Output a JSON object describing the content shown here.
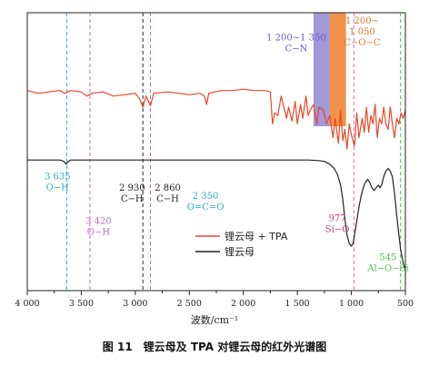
{
  "chart_data": {
    "type": "line",
    "title": "",
    "caption": "图 11　锂云母及 TPA 对锂云母的红外光谱图",
    "xlabel": "波数/cm⁻¹",
    "ylabel": "",
    "xlim": [
      4000,
      500
    ],
    "x_reversed": true,
    "x_ticks": [
      4000,
      3500,
      3000,
      2500,
      2000,
      1500,
      1000,
      500
    ],
    "x_tick_labels": [
      "4 000",
      "3 500",
      "3 000",
      "2 500",
      "2 000",
      "1 500",
      "1 000",
      "500"
    ],
    "y_ticks_shown": false,
    "legend_position": "lower-right inside plot",
    "series": [
      {
        "name": "锂云母 + TPA",
        "color": "#e8472a",
        "points": [
          [
            4000,
            0.72
          ],
          [
            3900,
            0.71
          ],
          [
            3800,
            0.715
          ],
          [
            3700,
            0.72
          ],
          [
            3650,
            0.71
          ],
          [
            3600,
            0.72
          ],
          [
            3500,
            0.715
          ],
          [
            3450,
            0.7
          ],
          [
            3400,
            0.71
          ],
          [
            3300,
            0.715
          ],
          [
            3200,
            0.7
          ],
          [
            3100,
            0.705
          ],
          [
            3000,
            0.71
          ],
          [
            2960,
            0.69
          ],
          [
            2930,
            0.66
          ],
          [
            2900,
            0.7
          ],
          [
            2860,
            0.665
          ],
          [
            2830,
            0.71
          ],
          [
            2700,
            0.715
          ],
          [
            2600,
            0.71
          ],
          [
            2500,
            0.705
          ],
          [
            2400,
            0.71
          ],
          [
            2360,
            0.7
          ],
          [
            2340,
            0.67
          ],
          [
            2320,
            0.71
          ],
          [
            2200,
            0.72
          ],
          [
            2100,
            0.72
          ],
          [
            2000,
            0.725
          ],
          [
            1900,
            0.72
          ],
          [
            1800,
            0.72
          ],
          [
            1750,
            0.715
          ],
          [
            1730,
            0.6
          ],
          [
            1710,
            0.64
          ],
          [
            1680,
            0.63
          ],
          [
            1650,
            0.7
          ],
          [
            1600,
            0.62
          ],
          [
            1580,
            0.66
          ],
          [
            1550,
            0.61
          ],
          [
            1520,
            0.68
          ],
          [
            1500,
            0.6
          ],
          [
            1470,
            0.67
          ],
          [
            1450,
            0.62
          ],
          [
            1420,
            0.7
          ],
          [
            1400,
            0.63
          ],
          [
            1380,
            0.65
          ],
          [
            1350,
            0.67
          ],
          [
            1320,
            0.6
          ],
          [
            1300,
            0.66
          ],
          [
            1260,
            0.65
          ],
          [
            1230,
            0.6
          ],
          [
            1200,
            0.63
          ],
          [
            1170,
            0.55
          ],
          [
            1150,
            0.62
          ],
          [
            1120,
            0.53
          ],
          [
            1100,
            0.65
          ],
          [
            1080,
            0.54
          ],
          [
            1060,
            0.58
          ],
          [
            1040,
            0.51
          ],
          [
            1020,
            0.6
          ],
          [
            1000,
            0.56
          ],
          [
            970,
            0.52
          ],
          [
            950,
            0.64
          ],
          [
            930,
            0.55
          ],
          [
            900,
            0.62
          ],
          [
            880,
            0.57
          ],
          [
            860,
            0.66
          ],
          [
            840,
            0.57
          ],
          [
            820,
            0.63
          ],
          [
            800,
            0.6
          ],
          [
            780,
            0.67
          ],
          [
            760,
            0.55
          ],
          [
            740,
            0.62
          ],
          [
            720,
            0.6
          ],
          [
            700,
            0.66
          ],
          [
            680,
            0.6
          ],
          [
            660,
            0.58
          ],
          [
            640,
            0.66
          ],
          [
            620,
            0.6
          ],
          [
            600,
            0.55
          ],
          [
            580,
            0.62
          ],
          [
            560,
            0.6
          ],
          [
            540,
            0.64
          ],
          [
            520,
            0.62
          ],
          [
            500,
            0.65
          ]
        ]
      },
      {
        "name": "锂云母",
        "color": "#222222",
        "points": [
          [
            4000,
            0.47
          ],
          [
            3800,
            0.47
          ],
          [
            3700,
            0.47
          ],
          [
            3660,
            0.465
          ],
          [
            3640,
            0.455
          ],
          [
            3620,
            0.465
          ],
          [
            3600,
            0.47
          ],
          [
            3400,
            0.47
          ],
          [
            3000,
            0.47
          ],
          [
            2500,
            0.47
          ],
          [
            2000,
            0.47
          ],
          [
            1500,
            0.47
          ],
          [
            1400,
            0.47
          ],
          [
            1300,
            0.468
          ],
          [
            1250,
            0.465
          ],
          [
            1200,
            0.455
          ],
          [
            1160,
            0.44
          ],
          [
            1130,
            0.42
          ],
          [
            1100,
            0.38
          ],
          [
            1080,
            0.33
          ],
          [
            1060,
            0.26
          ],
          [
            1040,
            0.2
          ],
          [
            1020,
            0.17
          ],
          [
            1000,
            0.16
          ],
          [
            985,
            0.17
          ],
          [
            970,
            0.2
          ],
          [
            950,
            0.25
          ],
          [
            930,
            0.3
          ],
          [
            910,
            0.34
          ],
          [
            890,
            0.37
          ],
          [
            870,
            0.39
          ],
          [
            850,
            0.4
          ],
          [
            830,
            0.39
          ],
          [
            810,
            0.37
          ],
          [
            790,
            0.36
          ],
          [
            770,
            0.37
          ],
          [
            750,
            0.38
          ],
          [
            735,
            0.37
          ],
          [
            720,
            0.38
          ],
          [
            700,
            0.41
          ],
          [
            680,
            0.43
          ],
          [
            660,
            0.44
          ],
          [
            640,
            0.43
          ],
          [
            620,
            0.41
          ],
          [
            600,
            0.35
          ],
          [
            580,
            0.27
          ],
          [
            560,
            0.2
          ],
          [
            545,
            0.15
          ],
          [
            530,
            0.12
          ],
          [
            515,
            0.09
          ],
          [
            500,
            0.08
          ]
        ]
      }
    ],
    "bands": [
      {
        "from": 1350,
        "to": 1200,
        "color": "#9b93d8"
      },
      {
        "from": 1200,
        "to": 1050,
        "color": "#f08c3e"
      }
    ],
    "reference_lines": [
      {
        "x": 3635,
        "color": "#2aa7d6"
      },
      {
        "x": 3420,
        "color": "#c46ad0"
      },
      {
        "x": 2930,
        "color": "#222222"
      },
      {
        "x": 2860,
        "color": "#c46ad0"
      },
      {
        "x": 977,
        "color": "#e06aa0"
      },
      {
        "x": 545,
        "color": "#4cbf4a"
      }
    ],
    "annotations": [
      {
        "lines": [
          "1 200~1 350",
          "C−N"
        ],
        "x": 1510,
        "y": 0.9,
        "color": "#6a5fc6",
        "anchor": "middle"
      },
      {
        "lines": [
          "1 200~",
          "1 050",
          "C−O−C"
        ],
        "x": 900,
        "y": 0.96,
        "color": "#e8702a",
        "anchor": "middle"
      },
      {
        "lines": [
          "3 635",
          "O−H"
        ],
        "x": 3720,
        "y": 0.4,
        "color": "#2aa7d6",
        "anchor": "middle"
      },
      {
        "lines": [
          "2 930",
          "C−H"
        ],
        "x": 3030,
        "y": 0.36,
        "color": "#222222",
        "anchor": "middle"
      },
      {
        "lines": [
          "2 860",
          "C−H"
        ],
        "x": 2700,
        "y": 0.36,
        "color": "#222222",
        "anchor": "middle"
      },
      {
        "lines": [
          "2 350",
          "O=C=O"
        ],
        "x": 2350,
        "y": 0.33,
        "color": "#2aa7d6",
        "anchor": "middle"
      },
      {
        "lines": [
          "3 420",
          "O−H"
        ],
        "x": 3340,
        "y": 0.24,
        "color": "#c46ad0",
        "anchor": "middle"
      },
      {
        "lines": [
          "977",
          "Si−O"
        ],
        "x": 1130,
        "y": 0.25,
        "color": "#c43a7a",
        "anchor": "middle"
      },
      {
        "lines": [
          "545",
          "Al−O−Si"
        ],
        "x": 660,
        "y": 0.11,
        "color": "#4cbf4a",
        "anchor": "middle"
      }
    ]
  }
}
